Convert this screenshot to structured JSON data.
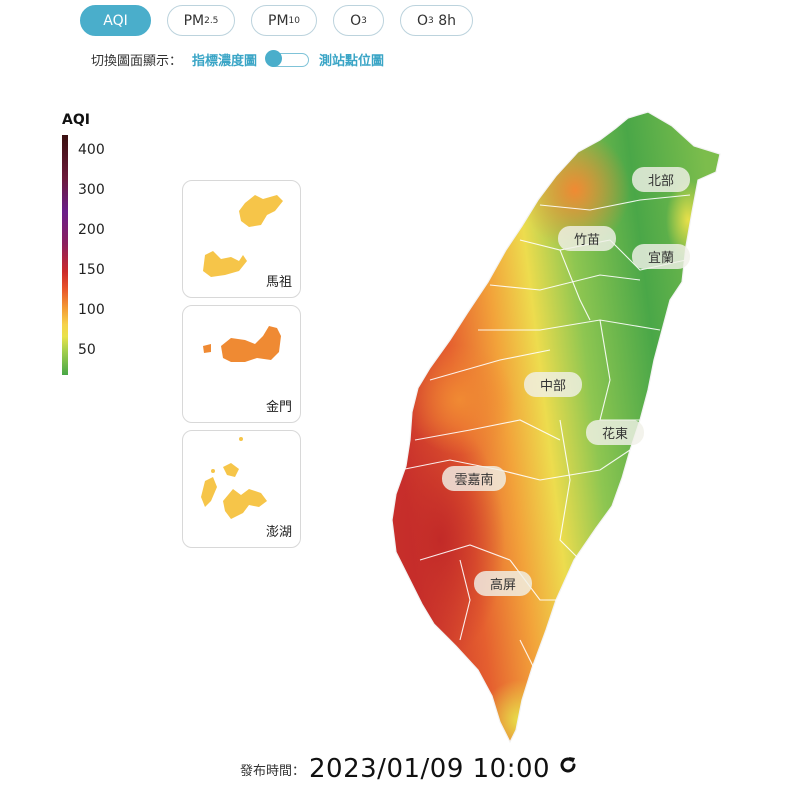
{
  "tabs": [
    {
      "main": "AQI",
      "sub": "",
      "suffix": "",
      "active": true
    },
    {
      "main": "PM",
      "sub": "2.5",
      "suffix": "",
      "active": false
    },
    {
      "main": "PM",
      "sub": "10",
      "suffix": "",
      "active": false
    },
    {
      "main": "O",
      "sub": "3",
      "suffix": "",
      "active": false
    },
    {
      "main": "O",
      "sub": "3",
      "suffix": " 8h",
      "active": false
    }
  ],
  "display_switch": {
    "label": "切換圖面顯示：",
    "option_left": "指標濃度圖",
    "option_right": "測站點位圖",
    "selected": "指標濃度圖"
  },
  "legend": {
    "title": "AQI",
    "ticks": [
      "400",
      "300",
      "200",
      "150",
      "100",
      "50"
    ]
  },
  "insets": [
    {
      "name": "馬祖"
    },
    {
      "name": "金門"
    },
    {
      "name": "澎湖"
    }
  ],
  "regions": [
    "北部",
    "竹苗",
    "宜蘭",
    "中部",
    "花東",
    "雲嘉南",
    "高屏"
  ],
  "colors": {
    "accent": "#4aaecb",
    "good": "#4aa647",
    "moderate": "#f5d24a",
    "sensitive": "#f39a34",
    "unhealthy": "#d53a2f"
  },
  "footer": {
    "label": "發布時間：",
    "time": "2023/01/09 10:00",
    "refresh_icon": "refresh-icon"
  }
}
